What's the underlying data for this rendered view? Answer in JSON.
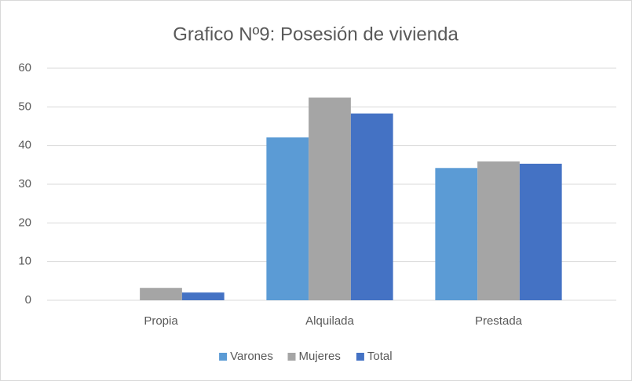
{
  "chart_data": {
    "type": "bar",
    "title": "Grafico Nº9: Posesión de vivienda",
    "categories": [
      "Propia",
      "Alquilada",
      "Prestada"
    ],
    "series": [
      {
        "name": "Varones",
        "color": "#5b9bd5",
        "values": [
          0,
          42.1,
          34.2
        ]
      },
      {
        "name": "Mujeres",
        "color": "#a5a5a5",
        "values": [
          3.2,
          52.4,
          35.9
        ]
      },
      {
        "name": "Total",
        "color": "#4472c4",
        "values": [
          2.0,
          48.3,
          35.3
        ]
      }
    ],
    "ylim": [
      0,
      60
    ],
    "yticks": [
      0,
      10,
      20,
      30,
      40,
      50,
      60
    ],
    "grid": true,
    "legend": "bottom"
  }
}
